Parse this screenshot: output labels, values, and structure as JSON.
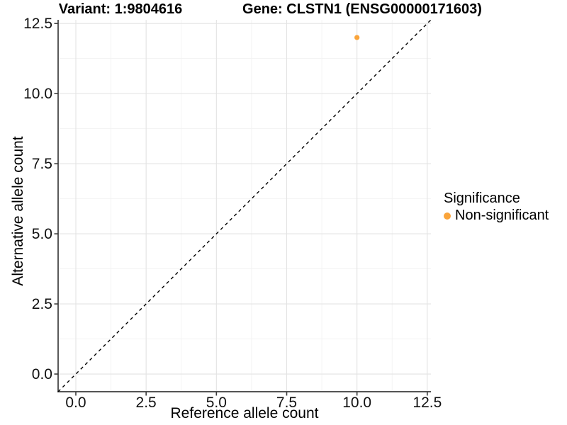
{
  "titles": {
    "left": "Variant: 1:9804616",
    "right": "Gene: CLSTN1 (ENSG00000171603)"
  },
  "chart_data": {
    "type": "scatter",
    "xlabel": "Reference allele count",
    "ylabel": "Alternative allele count",
    "xlim": [
      -0.63,
      12.63
    ],
    "ylim": [
      -0.63,
      12.63
    ],
    "x_ticks": {
      "values": [
        0,
        2.5,
        5,
        7.5,
        10,
        12.5
      ],
      "labels": [
        "0.0",
        "2.5",
        "5.0",
        "7.5",
        "10.0",
        "12.5"
      ]
    },
    "y_ticks": {
      "values": [
        0,
        2.5,
        5,
        7.5,
        10,
        12.5
      ],
      "labels": [
        "0.0",
        "2.5",
        "5.0",
        "7.5",
        "10.0",
        "12.5"
      ]
    },
    "minor_ticks": [
      1.25,
      3.75,
      6.25,
      8.75,
      11.25
    ],
    "grid": true,
    "points": [
      {
        "x": 10,
        "y": 12,
        "series": "Non-significant"
      }
    ],
    "reference_line": {
      "kind": "identity y=x",
      "style": "dashed",
      "color": "#000000"
    },
    "legend": {
      "title": "Significance",
      "position": "right",
      "items": [
        {
          "label": "Non-significant",
          "color": "#FAA43A"
        }
      ]
    }
  },
  "colors": {
    "point": "#FAA43A",
    "grid_major": "#e3e3e3",
    "grid_minor": "#f1f1f1",
    "axis_line": "#3c3c3c",
    "tick_text": "#111111",
    "background": "#ffffff"
  }
}
